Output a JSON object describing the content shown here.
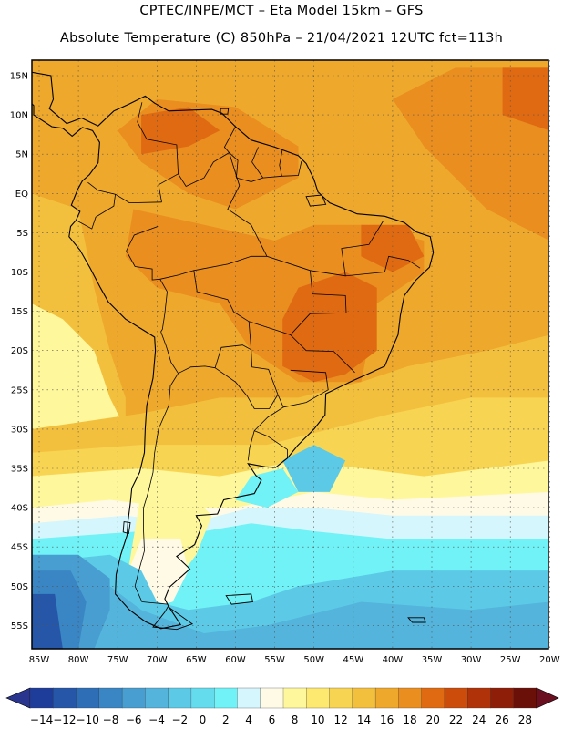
{
  "header": {
    "line1": "CPTEC/INPE/MCT –  Eta Model 15km – GFS",
    "line2": "Absolute Temperature (C) 850hPa – 21/04/2021 12UTC fct=113h"
  },
  "axes": {
    "lat_labels": [
      "15N",
      "10N",
      "5N",
      "EQ",
      "5S",
      "10S",
      "15S",
      "20S",
      "25S",
      "30S",
      "35S",
      "40S",
      "45S",
      "50S",
      "55S"
    ],
    "lon_labels": [
      "85W",
      "80W",
      "75W",
      "70W",
      "65W",
      "60W",
      "55W",
      "50W",
      "45W",
      "40W",
      "35W",
      "30W",
      "25W",
      "20W"
    ]
  },
  "colorbar": {
    "labels": [
      "-14",
      "-12",
      "-10",
      "-8",
      "-6",
      "-4",
      "-2",
      "0",
      "2",
      "4",
      "6",
      "8",
      "10",
      "12",
      "14",
      "16",
      "18",
      "20",
      "22",
      "24",
      "26",
      "28"
    ],
    "colors": [
      "#1e3c9a",
      "#2656a8",
      "#2e6eb6",
      "#3a86c4",
      "#489ed0",
      "#54b4dc",
      "#5ccae6",
      "#64dcee",
      "#70f2f6",
      "#d4f6fc",
      "#fffae6",
      "#fff79c",
      "#fde870",
      "#f8d453",
      "#f3c03e",
      "#eea82c",
      "#e98e1f",
      "#e06a12",
      "#cc4c0c",
      "#b03208",
      "#8e1e08",
      "#6a1008"
    ],
    "low_arrow_color": "#2a3590",
    "high_arrow_color": "#6a0f20"
  },
  "map_colors": {
    "base": "#eea82c",
    "warm": "#e98e1f",
    "hot": "#e06a12",
    "mild": "#f3c03e",
    "cool": "#f8d453",
    "pale": "#fff79c",
    "cream": "#fffae6",
    "ice": "#d4f6fc",
    "cyan": "#70f2f6",
    "aqua": "#5ccae6",
    "sky": "#54b4dc",
    "steel": "#489ed0",
    "blue": "#3a86c4",
    "deep": "#2656a8"
  }
}
